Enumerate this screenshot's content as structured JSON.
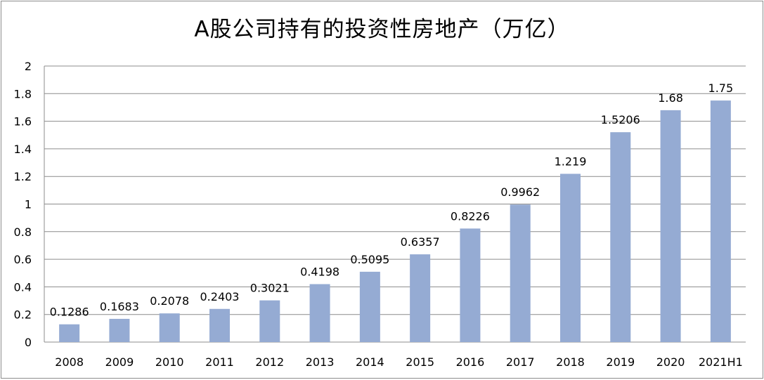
{
  "chart_data": {
    "type": "bar",
    "title": "A股公司持有的投资性房地产（万亿）",
    "xlabel": "",
    "ylabel": "",
    "categories": [
      "2008",
      "2009",
      "2010",
      "2011",
      "2012",
      "2013",
      "2014",
      "2015",
      "2016",
      "2017",
      "2018",
      "2019",
      "2020",
      "2021H1"
    ],
    "values": [
      0.1286,
      0.1683,
      0.2078,
      0.2403,
      0.3021,
      0.4198,
      0.5095,
      0.6357,
      0.8226,
      0.9962,
      1.219,
      1.5206,
      1.68,
      1.75
    ],
    "value_labels": [
      "0.1286",
      "0.1683",
      "0.2078",
      "0.2403",
      "0.3021",
      "0.4198",
      "0.5095",
      "0.6357",
      "0.8226",
      "0.9962",
      "1.219",
      "1.5206",
      "1.68",
      "1.75"
    ],
    "ylim": [
      0,
      2
    ],
    "yticks": [
      "0",
      "0.2",
      "0.4",
      "0.6",
      "0.8",
      "1",
      "1.2",
      "1.4",
      "1.6",
      "1.8",
      "2"
    ],
    "grid": true,
    "legend": "none",
    "colors": {
      "bar": "#95abd3",
      "grid": "#8c8c8c",
      "text": "#000000"
    }
  }
}
